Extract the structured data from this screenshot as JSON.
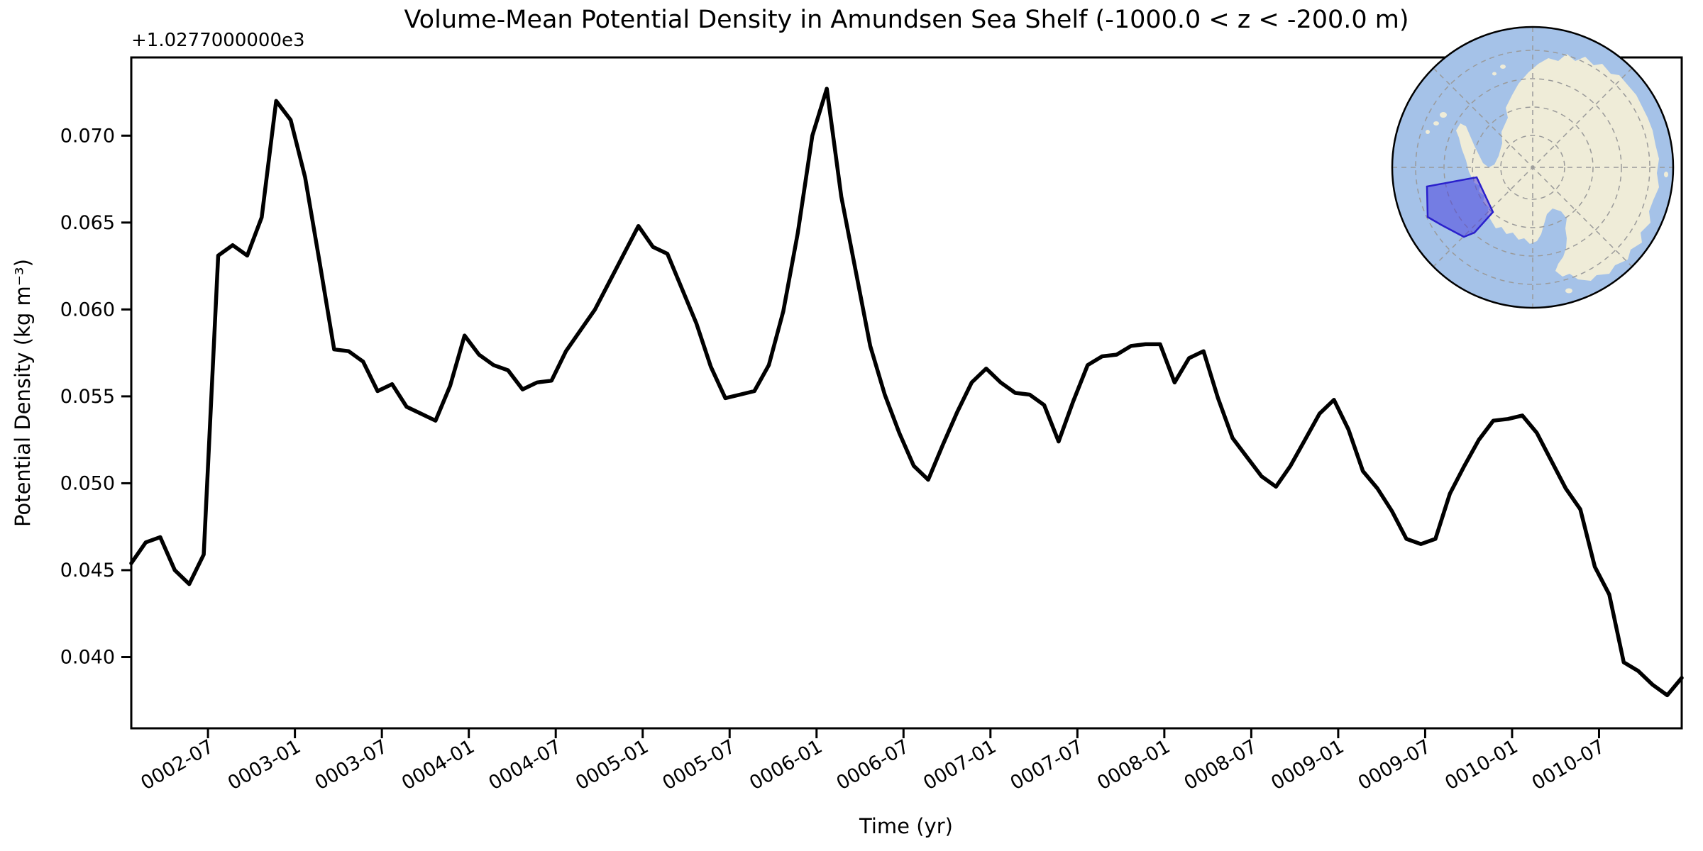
{
  "figure": {
    "background": "#ffffff"
  },
  "chart_data": {
    "type": "line",
    "title": "Volume-Mean Potential Density in Amundsen Sea Shelf (-1000.0 < z < -200.0 m)",
    "xlabel": "Time (yr)",
    "ylabel": "Potential Density (kg m⁻³)",
    "y_offset_text": "+1.0277000000e3",
    "series_name": "volume-mean potential density",
    "line_color": "#000000",
    "line_width": 5.5,
    "grid": false,
    "legend": "none",
    "ylim": [
      0.0359,
      0.0745
    ],
    "y_ticks": [
      {
        "label": "0.040",
        "value": 0.04
      },
      {
        "label": "0.045",
        "value": 0.045
      },
      {
        "label": "0.050",
        "value": 0.05
      },
      {
        "label": "0.055",
        "value": 0.055
      },
      {
        "label": "0.060",
        "value": 0.06
      },
      {
        "label": "0.065",
        "value": 0.065
      },
      {
        "label": "0.070",
        "value": 0.07
      }
    ],
    "x_tick_indices": [
      5,
      11,
      17,
      23,
      29,
      35,
      41,
      47,
      53,
      59,
      65,
      71,
      77,
      83,
      89,
      95,
      101
    ],
    "x_tick_labels": [
      "0002-07",
      "0003-01",
      "0003-07",
      "0004-01",
      "0004-07",
      "0005-01",
      "0005-07",
      "0006-01",
      "0006-07",
      "0007-01",
      "0007-07",
      "0008-01",
      "0008-07",
      "0009-01",
      "0009-07",
      "0010-01",
      "0010-07"
    ],
    "x_tick_rotation_deg": 30,
    "x": [
      "0002-02",
      "0002-03",
      "0002-04",
      "0002-05",
      "0002-06",
      "0002-07",
      "0002-08",
      "0002-09",
      "0002-10",
      "0002-11",
      "0002-12",
      "0003-01",
      "0003-02",
      "0003-03",
      "0003-04",
      "0003-05",
      "0003-06",
      "0003-07",
      "0003-08",
      "0003-09",
      "0003-10",
      "0003-11",
      "0003-12",
      "0004-01",
      "0004-02",
      "0004-03",
      "0004-04",
      "0004-05",
      "0004-06",
      "0004-07",
      "0004-08",
      "0004-09",
      "0004-10",
      "0004-11",
      "0004-12",
      "0005-01",
      "0005-02",
      "0005-03",
      "0005-04",
      "0005-05",
      "0005-06",
      "0005-07",
      "0005-08",
      "0005-09",
      "0005-10",
      "0005-11",
      "0005-12",
      "0006-01",
      "0006-02",
      "0006-03",
      "0006-04",
      "0006-05",
      "0006-06",
      "0006-07",
      "0006-08",
      "0006-09",
      "0006-10",
      "0006-11",
      "0006-12",
      "0007-01",
      "0007-02",
      "0007-03",
      "0007-04",
      "0007-05",
      "0007-06",
      "0007-07",
      "0007-08",
      "0007-09",
      "0007-10",
      "0007-11",
      "0007-12",
      "0008-01",
      "0008-02",
      "0008-03",
      "0008-04",
      "0008-05",
      "0008-06",
      "0008-07",
      "0008-08",
      "0008-09",
      "0008-10",
      "0008-11",
      "0008-12",
      "0009-01",
      "0009-02",
      "0009-03",
      "0009-04",
      "0009-05",
      "0009-06",
      "0009-07",
      "0009-08",
      "0009-09",
      "0009-10",
      "0009-11",
      "0009-12",
      "0010-01",
      "0010-02",
      "0010-03",
      "0010-04",
      "0010-05",
      "0010-06",
      "0010-07",
      "0010-08",
      "0010-09",
      "0010-10",
      "0010-11",
      "0010-12",
      "0011-01"
    ],
    "y": [
      0.0454,
      0.0466,
      0.0469,
      0.045,
      0.0442,
      0.0459,
      0.0631,
      0.0637,
      0.0631,
      0.0653,
      0.072,
      0.0709,
      0.0676,
      0.0627,
      0.0577,
      0.0576,
      0.057,
      0.0553,
      0.0557,
      0.0544,
      0.054,
      0.0536,
      0.0556,
      0.0585,
      0.0574,
      0.0568,
      0.0565,
      0.0554,
      0.0558,
      0.0559,
      0.0576,
      0.0588,
      0.06,
      0.0616,
      0.0632,
      0.0648,
      0.0636,
      0.0632,
      0.0612,
      0.0592,
      0.0567,
      0.0549,
      0.0551,
      0.0553,
      0.0568,
      0.0599,
      0.0644,
      0.07,
      0.0727,
      0.0665,
      0.0622,
      0.0579,
      0.0551,
      0.0529,
      0.051,
      0.0502,
      0.0522,
      0.0541,
      0.0558,
      0.0566,
      0.0558,
      0.0552,
      0.0551,
      0.0545,
      0.0524,
      0.0547,
      0.0568,
      0.0573,
      0.0574,
      0.0579,
      0.058,
      0.058,
      0.0558,
      0.0572,
      0.0576,
      0.0549,
      0.0526,
      0.0515,
      0.0504,
      0.0498,
      0.051,
      0.0525,
      0.054,
      0.0548,
      0.0531,
      0.0507,
      0.0497,
      0.0484,
      0.0468,
      0.0465,
      0.0468,
      0.0494,
      0.051,
      0.0525,
      0.0536,
      0.0537,
      0.0539,
      0.0529,
      0.0513,
      0.0497,
      0.0485,
      0.0452,
      0.0436,
      0.0397,
      0.0392,
      0.0384,
      0.0378,
      0.0388
    ]
  },
  "inset_map": {
    "description": "South polar orthographic globe with Antarctica and the Amundsen Sea Shelf region highlighted",
    "ocean_color": "#a5c2e8",
    "land_color": "#efecd8",
    "region_fill": "#4338dd",
    "region_opacity": 0.5,
    "region_stroke": "#2a20cc",
    "graticule_color": "#9a9a9a",
    "border_color": "#000000"
  }
}
